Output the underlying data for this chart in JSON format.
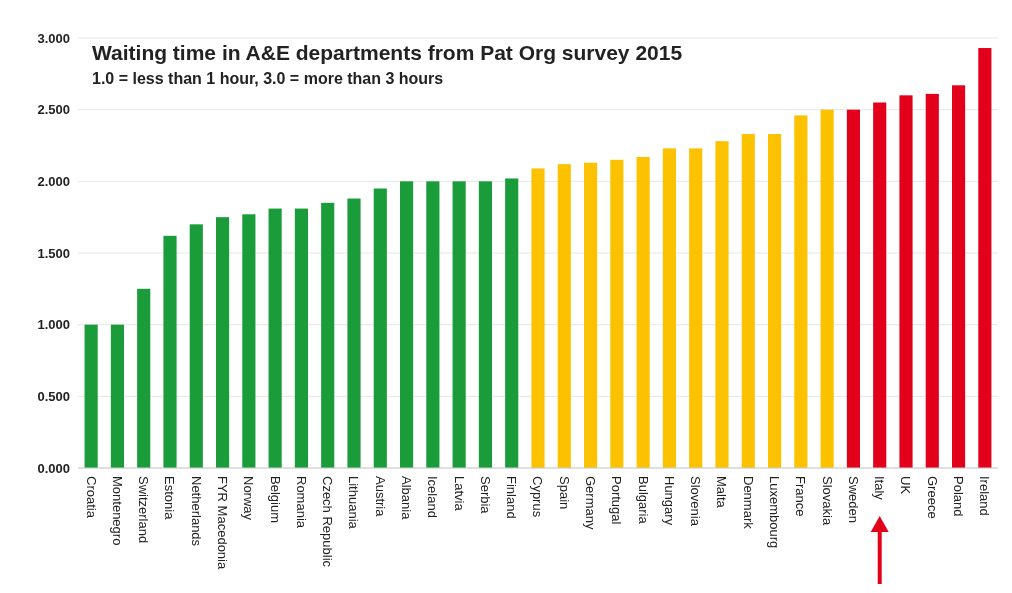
{
  "chart_data": {
    "type": "bar",
    "title": "Waiting time in A&E departments from Pat Org survey 2015",
    "subtitle": "1.0 = less than 1 hour, 3.0 = more than 3 hours",
    "categories": [
      "Croatia",
      "Montenegro",
      "Switzerland",
      "Estonia",
      "Netherlands",
      "FYR Macedonia",
      "Norway",
      "Belgium",
      "Romania",
      "Czech Republic",
      "Lithuania",
      "Austria",
      "Albania",
      "Iceland",
      "Latvia",
      "Serbia",
      "Finland",
      "Cyprus",
      "Spain",
      "Germany",
      "Portugal",
      "Bulgaria",
      "Hungary",
      "Slovenia",
      "Malta",
      "Denmark",
      "Luxembourg",
      "France",
      "Slovakia",
      "Sweden",
      "Italy",
      "UK",
      "Greece",
      "Poland",
      "Ireland"
    ],
    "values": [
      1.0,
      1.0,
      1.25,
      1.62,
      1.7,
      1.75,
      1.77,
      1.81,
      1.81,
      1.85,
      1.88,
      1.95,
      2.0,
      2.0,
      2.0,
      2.0,
      2.02,
      2.09,
      2.12,
      2.13,
      2.15,
      2.17,
      2.23,
      2.23,
      2.28,
      2.33,
      2.33,
      2.46,
      2.5,
      2.5,
      2.55,
      2.6,
      2.61,
      2.67,
      2.93
    ],
    "colors": [
      "#1a9c3a",
      "#1a9c3a",
      "#1a9c3a",
      "#1a9c3a",
      "#1a9c3a",
      "#1a9c3a",
      "#1a9c3a",
      "#1a9c3a",
      "#1a9c3a",
      "#1a9c3a",
      "#1a9c3a",
      "#1a9c3a",
      "#1a9c3a",
      "#1a9c3a",
      "#1a9c3a",
      "#1a9c3a",
      "#1a9c3a",
      "#fcc200",
      "#fcc200",
      "#fcc200",
      "#fcc200",
      "#fcc200",
      "#fcc200",
      "#fcc200",
      "#fcc200",
      "#fcc200",
      "#fcc200",
      "#fcc200",
      "#fcc200",
      "#e2001a",
      "#e2001a",
      "#e2001a",
      "#e2001a",
      "#e2001a",
      "#e2001a"
    ],
    "ylim": [
      0,
      3
    ],
    "yticks": [
      {
        "value": 0,
        "label": "0.000"
      },
      {
        "value": 0.5,
        "label": "0.500"
      },
      {
        "value": 1,
        "label": "1.000"
      },
      {
        "value": 1.5,
        "label": "1.500"
      },
      {
        "value": 2,
        "label": "2.000"
      },
      {
        "value": 2.5,
        "label": "2.500"
      },
      {
        "value": 3,
        "label": "3.000"
      }
    ],
    "grid": "y"
  }
}
